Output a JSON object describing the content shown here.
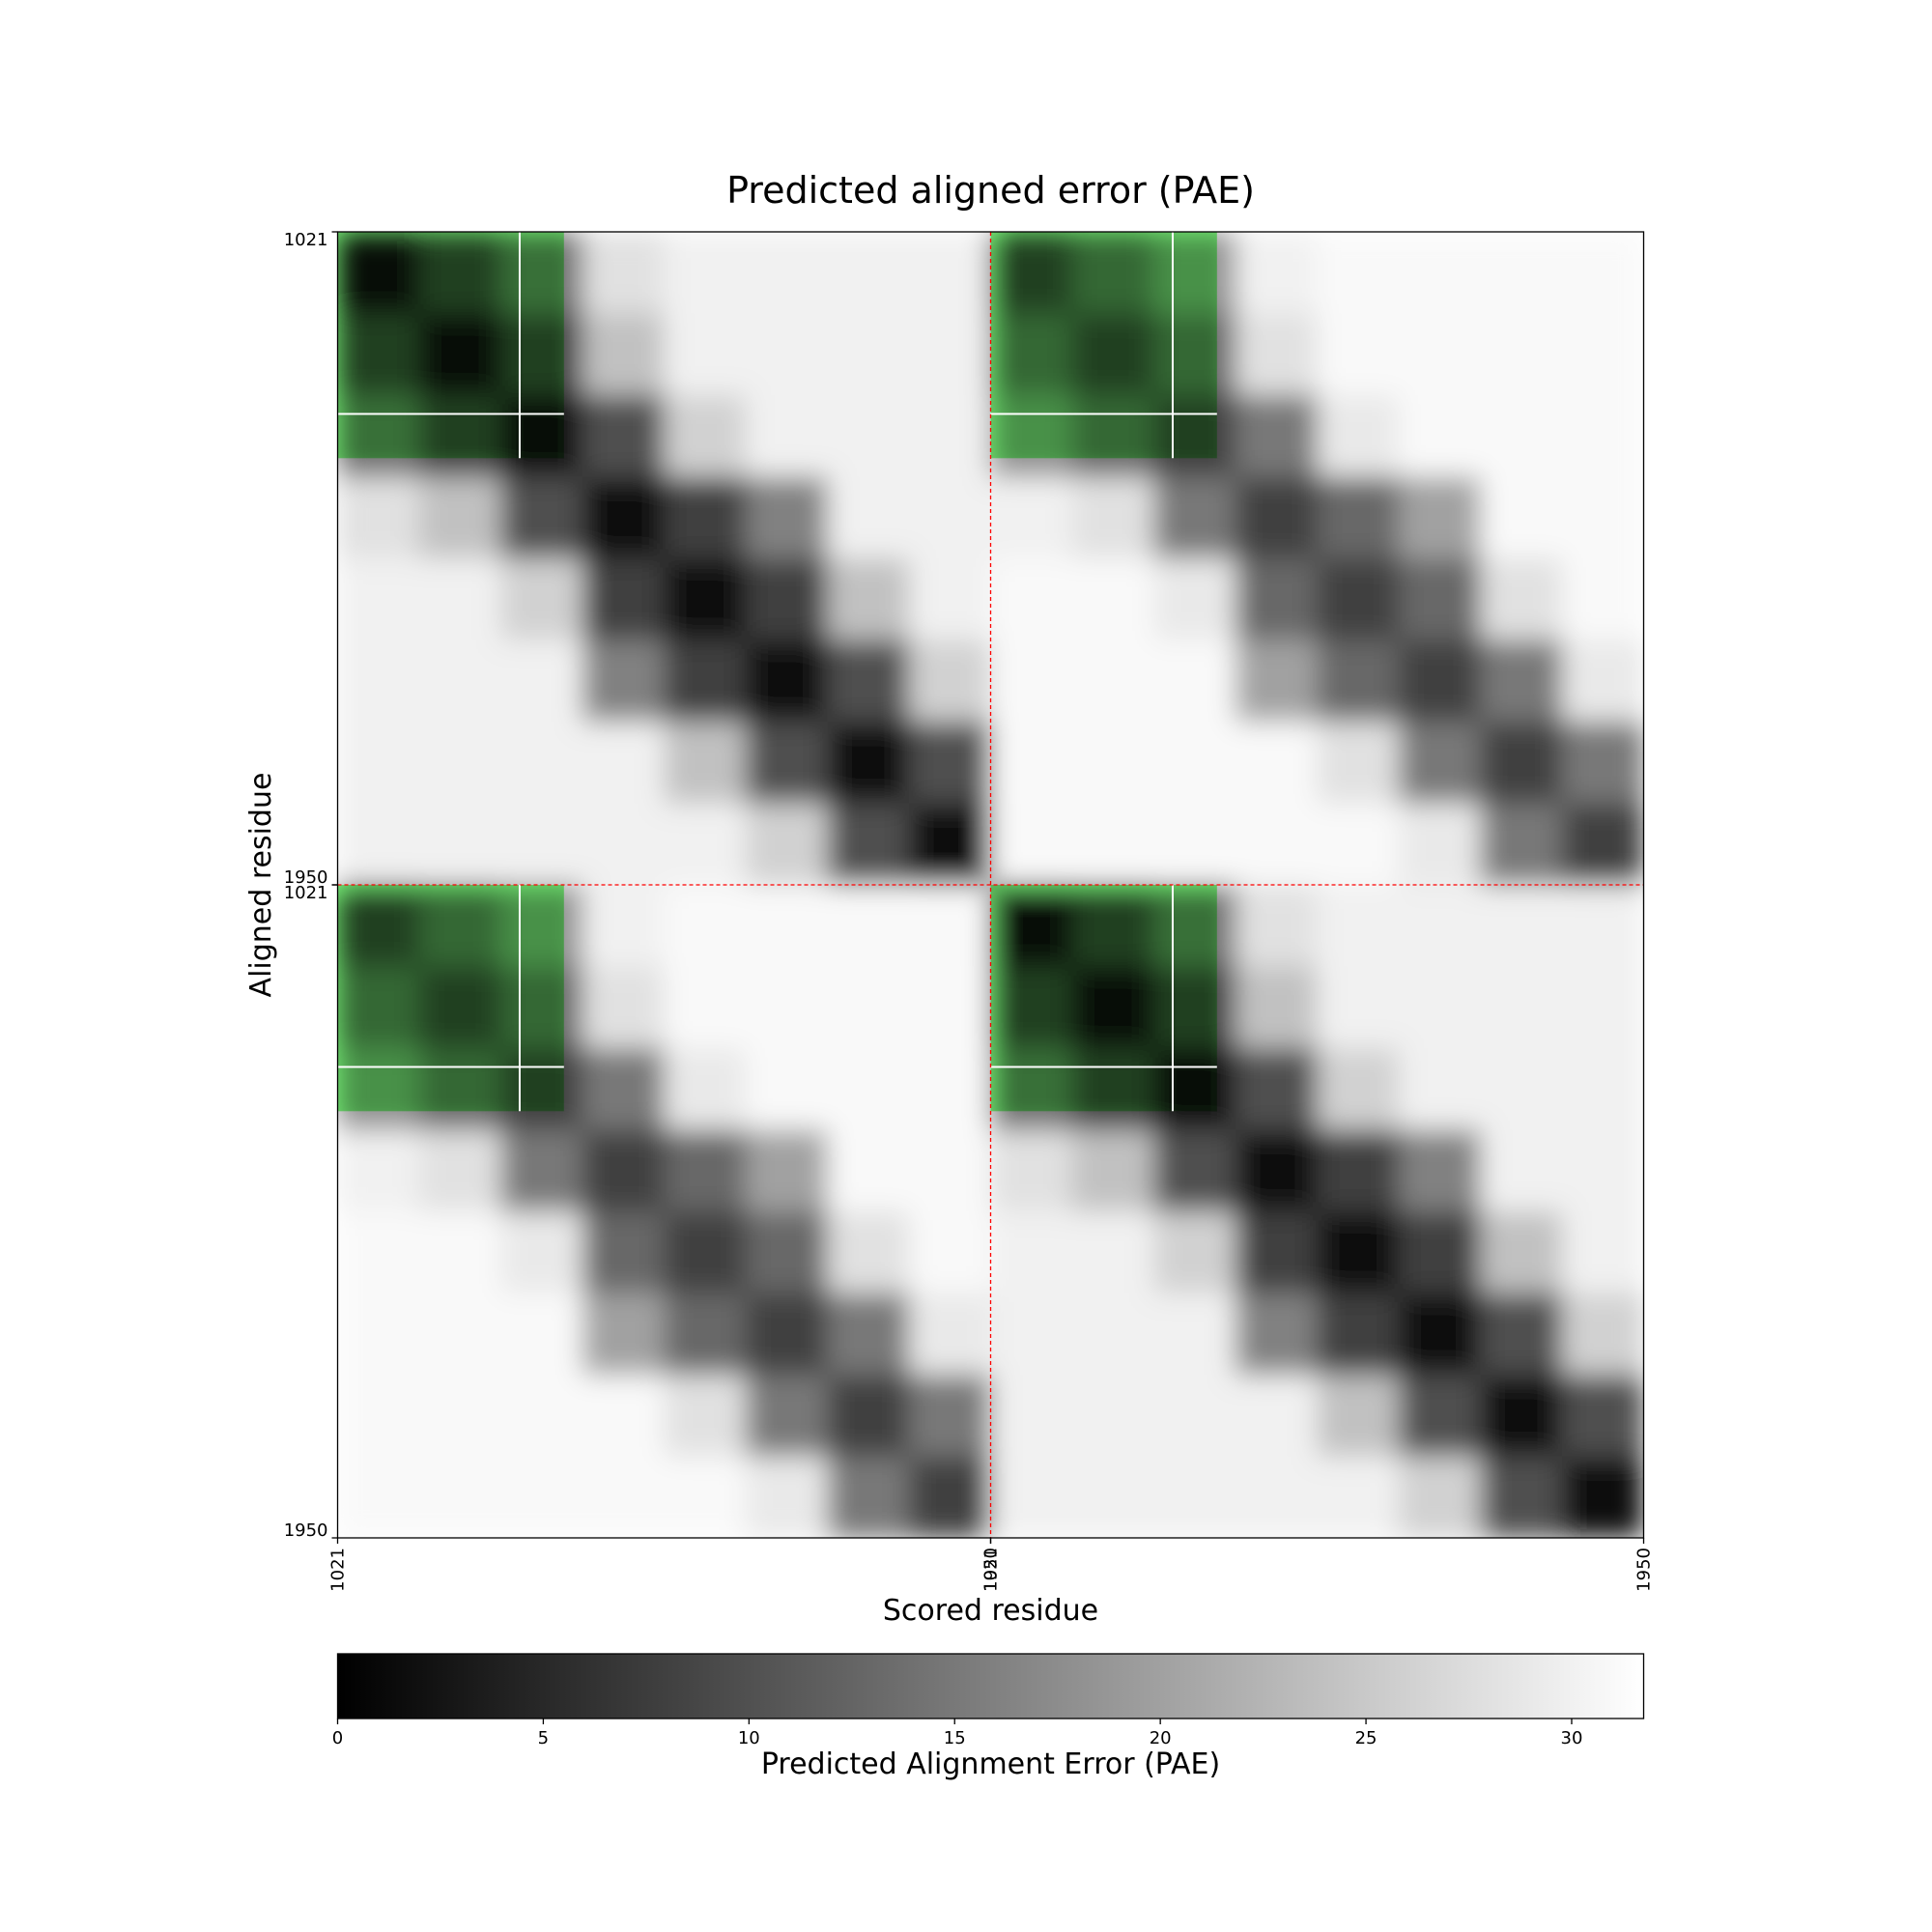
{
  "chart_data": {
    "type": "heatmap",
    "title": "Predicted aligned error (PAE)",
    "x_label": "Scored residue",
    "y_label": "Aligned residue",
    "x_segments": [
      [
        1021,
        1950
      ],
      [
        1021,
        1950
      ]
    ],
    "y_segments": [
      [
        1021,
        1950
      ],
      [
        1021,
        1950
      ]
    ],
    "matrix": [
      [
        2,
        8,
        14,
        28,
        30,
        30,
        30,
        30,
        8,
        13,
        18,
        30,
        31,
        31,
        31,
        31
      ],
      [
        8,
        2,
        8,
        24,
        30,
        30,
        30,
        30,
        13,
        8,
        13,
        28,
        31,
        31,
        31,
        31
      ],
      [
        14,
        8,
        2,
        10,
        26,
        30,
        30,
        30,
        18,
        13,
        8,
        15,
        29,
        31,
        31,
        31
      ],
      [
        28,
        24,
        10,
        2,
        8,
        16,
        30,
        30,
        30,
        28,
        15,
        8,
        13,
        20,
        31,
        31
      ],
      [
        30,
        30,
        26,
        8,
        2,
        8,
        24,
        30,
        31,
        31,
        29,
        13,
        8,
        13,
        28,
        31
      ],
      [
        30,
        30,
        30,
        16,
        8,
        2,
        10,
        26,
        31,
        31,
        31,
        20,
        13,
        8,
        15,
        29
      ],
      [
        30,
        30,
        30,
        30,
        24,
        10,
        2,
        10,
        31,
        31,
        31,
        31,
        28,
        15,
        8,
        15
      ],
      [
        30,
        30,
        30,
        30,
        30,
        26,
        10,
        2,
        31,
        31,
        31,
        31,
        31,
        29,
        15,
        8
      ],
      [
        8,
        13,
        18,
        30,
        31,
        31,
        31,
        31,
        2,
        8,
        14,
        28,
        30,
        30,
        30,
        30
      ],
      [
        13,
        8,
        13,
        28,
        31,
        31,
        31,
        31,
        8,
        2,
        8,
        24,
        30,
        30,
        30,
        30
      ],
      [
        18,
        13,
        8,
        15,
        29,
        31,
        31,
        31,
        14,
        8,
        2,
        10,
        26,
        30,
        30,
        30
      ],
      [
        30,
        28,
        15,
        8,
        13,
        20,
        31,
        31,
        28,
        24,
        10,
        2,
        8,
        16,
        30,
        30
      ],
      [
        31,
        31,
        29,
        13,
        8,
        13,
        28,
        31,
        30,
        30,
        26,
        8,
        2,
        8,
        24,
        30
      ],
      [
        31,
        31,
        31,
        20,
        13,
        8,
        15,
        29,
        30,
        30,
        30,
        16,
        8,
        2,
        10,
        26
      ],
      [
        31,
        31,
        31,
        31,
        28,
        15,
        8,
        15,
        30,
        30,
        30,
        30,
        24,
        10,
        2,
        10
      ],
      [
        31,
        31,
        31,
        31,
        31,
        29,
        15,
        8,
        30,
        30,
        30,
        30,
        30,
        26,
        10,
        2
      ]
    ],
    "highlight": {
      "range": [
        1021,
        1343
      ],
      "marker": 1280,
      "color": "#00ff00"
    },
    "separator_color": "#ff0000",
    "cmap": [
      "#000000",
      "#ffffff"
    ],
    "colorbar_label": "Predicted Alignment Error (PAE)",
    "clim": [
      0,
      31.75
    ],
    "cticks": [
      0,
      5,
      10,
      15,
      20,
      25,
      30
    ]
  }
}
